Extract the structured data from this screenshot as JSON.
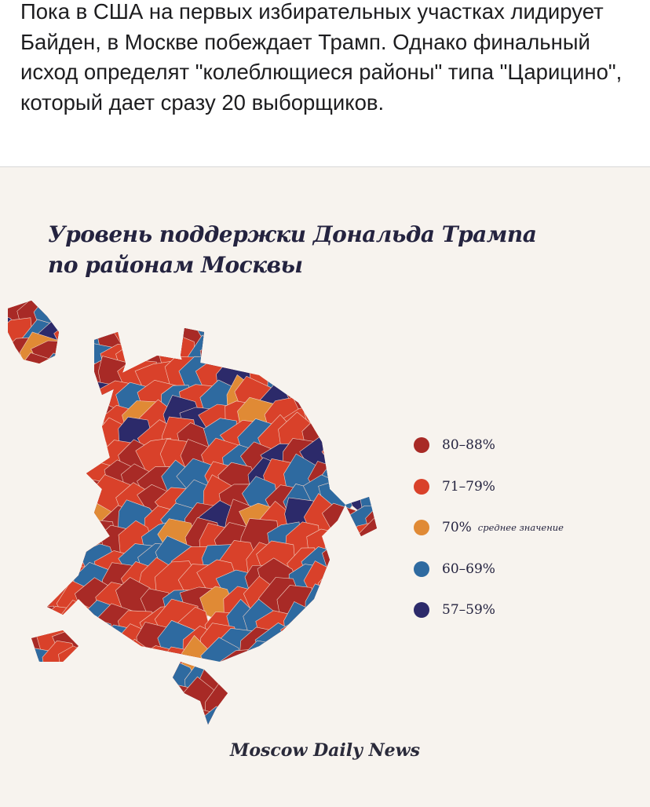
{
  "post": {
    "text": "Пока в США на первых избирательных участках лидирует Байден, в Москве побеждает Трамп. Однако финальный исход определят \"колеблющиеся районы\" типа \"Царицино\", который дает сразу 20 выборщиков."
  },
  "infographic": {
    "title_line1": "Уровень поддержки Дональда Трампа",
    "title_line2": "по районам Москвы",
    "legend": [
      {
        "label": "80–88%",
        "note": "",
        "color": "#a82a26"
      },
      {
        "label": "71–79%",
        "note": "",
        "color": "#d9412a"
      },
      {
        "label": "70%",
        "note": "среднее значение",
        "color": "#e08a35"
      },
      {
        "label": "60–69%",
        "note": "",
        "color": "#2e6aa0"
      },
      {
        "label": "57–59%",
        "note": "",
        "color": "#2c2a6a"
      }
    ],
    "logo": "Moscow Daily News"
  }
}
